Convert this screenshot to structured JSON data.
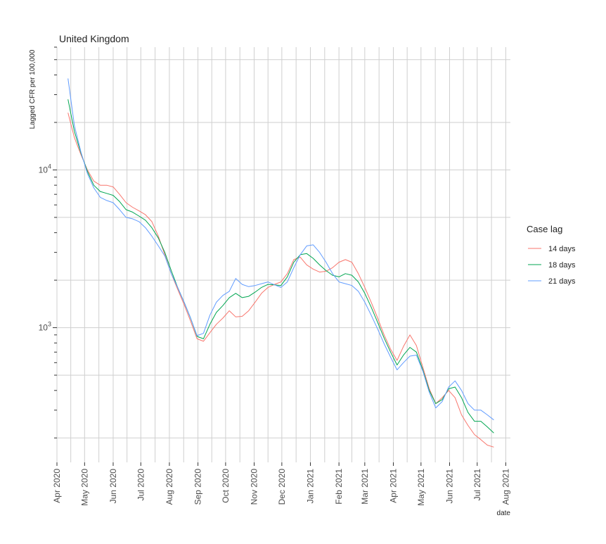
{
  "chart_data": {
    "type": "line",
    "title": "United Kingdom",
    "xlabel": "date",
    "ylabel": "Lagged CFR per 100,000",
    "yscale": "log",
    "ylim": [
      140,
      60000
    ],
    "xlim": [
      "2020-04-01",
      "2021-08-06"
    ],
    "x_ticks": [
      {
        "label": "Apr 2020",
        "date": "2020-04-01"
      },
      {
        "label": "May 2020",
        "date": "2020-05-01"
      },
      {
        "label": "Jun 2020",
        "date": "2020-06-01"
      },
      {
        "label": "Jul 2020",
        "date": "2020-07-01"
      },
      {
        "label": "Aug 2020",
        "date": "2020-08-01"
      },
      {
        "label": "Sep 2020",
        "date": "2020-09-01"
      },
      {
        "label": "Oct 2020",
        "date": "2020-10-01"
      },
      {
        "label": "Nov 2020",
        "date": "2020-11-01"
      },
      {
        "label": "Dec 2020",
        "date": "2020-12-01"
      },
      {
        "label": "Jan 2021",
        "date": "2021-01-01"
      },
      {
        "label": "Feb 2021",
        "date": "2021-02-01"
      },
      {
        "label": "Mar 2021",
        "date": "2021-03-01"
      },
      {
        "label": "Apr 2021",
        "date": "2021-04-01"
      },
      {
        "label": "May 2021",
        "date": "2021-05-01"
      },
      {
        "label": "Jun 2021",
        "date": "2021-06-01"
      },
      {
        "label": "Jul 2021",
        "date": "2021-07-01"
      },
      {
        "label": "Aug 2021",
        "date": "2021-08-01"
      }
    ],
    "y_ticks": [
      {
        "value": 1000,
        "base": "10",
        "exp": "3"
      },
      {
        "value": 10000,
        "base": "10",
        "exp": "4"
      }
    ],
    "grid": true,
    "legend": {
      "title": "Case lag",
      "position": "right"
    },
    "series": [
      {
        "name": "14 days",
        "color": "#F8766D",
        "points": [
          [
            "2020-04-13",
            23000
          ],
          [
            "2020-04-20",
            16000
          ],
          [
            "2020-04-27",
            12500
          ],
          [
            "2020-05-04",
            10000
          ],
          [
            "2020-05-11",
            8500
          ],
          [
            "2020-05-18",
            8000
          ],
          [
            "2020-05-25",
            8000
          ],
          [
            "2020-06-01",
            7800
          ],
          [
            "2020-06-08",
            7000
          ],
          [
            "2020-06-15",
            6200
          ],
          [
            "2020-06-22",
            5800
          ],
          [
            "2020-06-29",
            5500
          ],
          [
            "2020-07-06",
            5200
          ],
          [
            "2020-07-13",
            4700
          ],
          [
            "2020-07-20",
            3800
          ],
          [
            "2020-07-27",
            2900
          ],
          [
            "2020-08-03",
            2200
          ],
          [
            "2020-08-10",
            1750
          ],
          [
            "2020-08-17",
            1400
          ],
          [
            "2020-08-24",
            1100
          ],
          [
            "2020-08-31",
            850
          ],
          [
            "2020-09-07",
            820
          ],
          [
            "2020-09-14",
            930
          ],
          [
            "2020-09-21",
            1050
          ],
          [
            "2020-09-28",
            1150
          ],
          [
            "2020-10-05",
            1280
          ],
          [
            "2020-10-12",
            1170
          ],
          [
            "2020-10-19",
            1180
          ],
          [
            "2020-10-26",
            1280
          ],
          [
            "2020-11-02",
            1450
          ],
          [
            "2020-11-09",
            1650
          ],
          [
            "2020-11-16",
            1800
          ],
          [
            "2020-11-23",
            1880
          ],
          [
            "2020-11-30",
            1950
          ],
          [
            "2020-12-07",
            2200
          ],
          [
            "2020-12-14",
            2700
          ],
          [
            "2020-12-21",
            2800
          ],
          [
            "2020-12-28",
            2500
          ],
          [
            "2021-01-04",
            2350
          ],
          [
            "2021-01-11",
            2250
          ],
          [
            "2021-01-18",
            2280
          ],
          [
            "2021-01-25",
            2400
          ],
          [
            "2021-02-01",
            2600
          ],
          [
            "2021-02-08",
            2700
          ],
          [
            "2021-02-15",
            2600
          ],
          [
            "2021-02-22",
            2200
          ],
          [
            "2021-03-01",
            1800
          ],
          [
            "2021-03-08",
            1450
          ],
          [
            "2021-03-15",
            1150
          ],
          [
            "2021-03-22",
            900
          ],
          [
            "2021-03-29",
            730
          ],
          [
            "2021-04-05",
            620
          ],
          [
            "2021-04-12",
            760
          ],
          [
            "2021-04-19",
            900
          ],
          [
            "2021-04-26",
            770
          ],
          [
            "2021-05-03",
            560
          ],
          [
            "2021-05-10",
            410
          ],
          [
            "2021-05-17",
            330
          ],
          [
            "2021-05-24",
            360
          ],
          [
            "2021-05-31",
            400
          ],
          [
            "2021-06-07",
            360
          ],
          [
            "2021-06-14",
            280
          ],
          [
            "2021-06-21",
            240
          ],
          [
            "2021-06-28",
            210
          ],
          [
            "2021-07-05",
            195
          ],
          [
            "2021-07-12",
            180
          ],
          [
            "2021-07-19",
            175
          ]
        ]
      },
      {
        "name": "18 days",
        "color": "#00A651",
        "points": [
          [
            "2020-04-13",
            28000
          ],
          [
            "2020-04-20",
            17500
          ],
          [
            "2020-04-27",
            12800
          ],
          [
            "2020-05-04",
            9800
          ],
          [
            "2020-05-11",
            8000
          ],
          [
            "2020-05-18",
            7300
          ],
          [
            "2020-05-25",
            7100
          ],
          [
            "2020-06-01",
            6900
          ],
          [
            "2020-06-08",
            6300
          ],
          [
            "2020-06-15",
            5600
          ],
          [
            "2020-06-22",
            5400
          ],
          [
            "2020-06-29",
            5100
          ],
          [
            "2020-07-06",
            4800
          ],
          [
            "2020-07-13",
            4300
          ],
          [
            "2020-07-20",
            3700
          ],
          [
            "2020-07-27",
            3000
          ],
          [
            "2020-08-03",
            2300
          ],
          [
            "2020-08-10",
            1800
          ],
          [
            "2020-08-17",
            1450
          ],
          [
            "2020-08-24",
            1150
          ],
          [
            "2020-08-31",
            880
          ],
          [
            "2020-09-07",
            850
          ],
          [
            "2020-09-14",
            1050
          ],
          [
            "2020-09-21",
            1250
          ],
          [
            "2020-09-28",
            1380
          ],
          [
            "2020-10-05",
            1550
          ],
          [
            "2020-10-12",
            1650
          ],
          [
            "2020-10-19",
            1550
          ],
          [
            "2020-10-26",
            1580
          ],
          [
            "2020-11-02",
            1680
          ],
          [
            "2020-11-09",
            1800
          ],
          [
            "2020-11-16",
            1880
          ],
          [
            "2020-11-23",
            1870
          ],
          [
            "2020-11-30",
            1850
          ],
          [
            "2020-12-07",
            2100
          ],
          [
            "2020-12-14",
            2600
          ],
          [
            "2020-12-21",
            2900
          ],
          [
            "2020-12-28",
            2950
          ],
          [
            "2021-01-04",
            2750
          ],
          [
            "2021-01-11",
            2500
          ],
          [
            "2021-01-18",
            2300
          ],
          [
            "2021-01-25",
            2150
          ],
          [
            "2021-02-01",
            2100
          ],
          [
            "2021-02-08",
            2200
          ],
          [
            "2021-02-15",
            2150
          ],
          [
            "2021-02-22",
            1950
          ],
          [
            "2021-03-01",
            1650
          ],
          [
            "2021-03-08",
            1350
          ],
          [
            "2021-03-15",
            1080
          ],
          [
            "2021-03-22",
            860
          ],
          [
            "2021-03-29",
            700
          ],
          [
            "2021-04-05",
            580
          ],
          [
            "2021-04-12",
            670
          ],
          [
            "2021-04-19",
            750
          ],
          [
            "2021-04-26",
            700
          ],
          [
            "2021-05-03",
            540
          ],
          [
            "2021-05-10",
            400
          ],
          [
            "2021-05-17",
            330
          ],
          [
            "2021-05-24",
            350
          ],
          [
            "2021-05-31",
            410
          ],
          [
            "2021-06-07",
            420
          ],
          [
            "2021-06-14",
            360
          ],
          [
            "2021-06-21",
            290
          ],
          [
            "2021-06-28",
            255
          ],
          [
            "2021-07-05",
            255
          ],
          [
            "2021-07-12",
            235
          ],
          [
            "2021-07-19",
            215
          ]
        ]
      },
      {
        "name": "21 days",
        "color": "#619CFF",
        "points": [
          [
            "2020-04-13",
            38000
          ],
          [
            "2020-04-20",
            19000
          ],
          [
            "2020-04-27",
            13000
          ],
          [
            "2020-05-04",
            9500
          ],
          [
            "2020-05-11",
            7700
          ],
          [
            "2020-05-18",
            6700
          ],
          [
            "2020-05-25",
            6400
          ],
          [
            "2020-06-01",
            6200
          ],
          [
            "2020-06-08",
            5600
          ],
          [
            "2020-06-15",
            5000
          ],
          [
            "2020-06-22",
            4900
          ],
          [
            "2020-06-29",
            4700
          ],
          [
            "2020-07-06",
            4300
          ],
          [
            "2020-07-13",
            3800
          ],
          [
            "2020-07-20",
            3300
          ],
          [
            "2020-07-27",
            2850
          ],
          [
            "2020-08-03",
            2200
          ],
          [
            "2020-08-10",
            1800
          ],
          [
            "2020-08-17",
            1450
          ],
          [
            "2020-08-24",
            1150
          ],
          [
            "2020-08-31",
            890
          ],
          [
            "2020-09-07",
            920
          ],
          [
            "2020-09-14",
            1200
          ],
          [
            "2020-09-21",
            1450
          ],
          [
            "2020-09-28",
            1600
          ],
          [
            "2020-10-05",
            1700
          ],
          [
            "2020-10-12",
            2050
          ],
          [
            "2020-10-19",
            1880
          ],
          [
            "2020-10-26",
            1820
          ],
          [
            "2020-11-02",
            1850
          ],
          [
            "2020-11-09",
            1900
          ],
          [
            "2020-11-16",
            1950
          ],
          [
            "2020-11-23",
            1870
          ],
          [
            "2020-11-30",
            1800
          ],
          [
            "2020-12-07",
            1950
          ],
          [
            "2020-12-14",
            2400
          ],
          [
            "2020-12-21",
            2900
          ],
          [
            "2020-12-28",
            3300
          ],
          [
            "2021-01-04",
            3350
          ],
          [
            "2021-01-11",
            3000
          ],
          [
            "2021-01-18",
            2600
          ],
          [
            "2021-01-25",
            2200
          ],
          [
            "2021-02-01",
            1950
          ],
          [
            "2021-02-08",
            1900
          ],
          [
            "2021-02-15",
            1850
          ],
          [
            "2021-02-22",
            1700
          ],
          [
            "2021-03-01",
            1450
          ],
          [
            "2021-03-08",
            1200
          ],
          [
            "2021-03-15",
            980
          ],
          [
            "2021-03-22",
            790
          ],
          [
            "2021-03-29",
            650
          ],
          [
            "2021-04-05",
            540
          ],
          [
            "2021-04-12",
            600
          ],
          [
            "2021-04-19",
            660
          ],
          [
            "2021-04-26",
            670
          ],
          [
            "2021-05-03",
            530
          ],
          [
            "2021-05-10",
            390
          ],
          [
            "2021-05-17",
            310
          ],
          [
            "2021-05-24",
            340
          ],
          [
            "2021-05-31",
            420
          ],
          [
            "2021-06-07",
            460
          ],
          [
            "2021-06-14",
            400
          ],
          [
            "2021-06-21",
            330
          ],
          [
            "2021-06-28",
            300
          ],
          [
            "2021-07-05",
            300
          ],
          [
            "2021-07-12",
            280
          ],
          [
            "2021-07-19",
            260
          ]
        ]
      }
    ]
  }
}
